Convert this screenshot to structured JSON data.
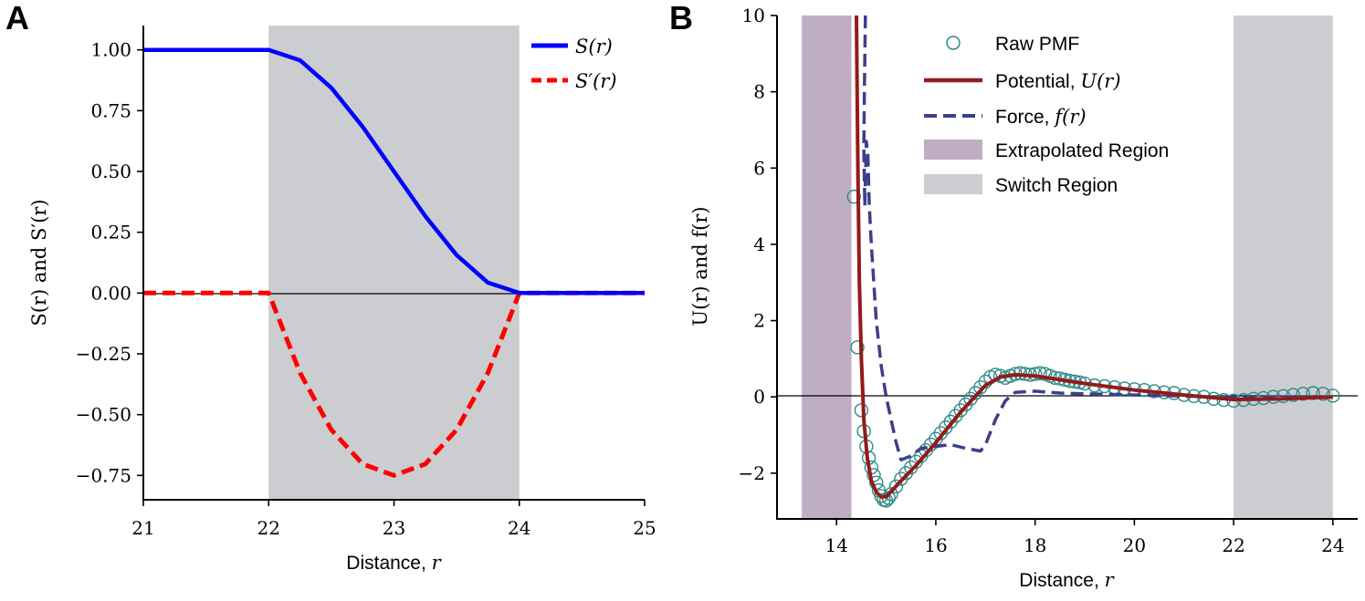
{
  "chart_data": [
    {
      "type": "line",
      "panel_label": "A",
      "title": "",
      "xlabel": "Distance, ",
      "xlabel_var": "r",
      "ylabel": "S(r) and S′(r)",
      "xlim": [
        21,
        25
      ],
      "ylim": [
        -0.85,
        1.1
      ],
      "xticks": [
        21,
        22,
        23,
        24,
        25
      ],
      "xtick_labels": [
        "21",
        "22",
        "23",
        "24",
        "25"
      ],
      "yticks": [
        1.0,
        0.75,
        0.5,
        0.25,
        0.0,
        -0.25,
        -0.5,
        -0.75
      ],
      "ytick_labels": [
        "1.00",
        "0.75",
        "0.50",
        "0.25",
        "0.00",
        "−0.25",
        "−0.50",
        "−0.75"
      ],
      "shaded_regions": [
        {
          "name": "Switch Region",
          "x0": 22,
          "x1": 24,
          "color": "#cbcdd0"
        }
      ],
      "hline": 0,
      "series": [
        {
          "name": "S(r)",
          "color": "#0000ff",
          "style": "solid",
          "x": [
            21,
            22,
            22.25,
            22.5,
            22.75,
            23,
            23.25,
            23.5,
            23.75,
            24,
            25
          ],
          "y": [
            1.0,
            1.0,
            0.9571,
            0.8438,
            0.6836,
            0.5,
            0.3164,
            0.1563,
            0.043,
            0.0,
            0.0
          ]
        },
        {
          "name": "S′(r)",
          "color": "#ff0000",
          "style": "dashed",
          "x": [
            21,
            22,
            22.25,
            22.5,
            22.75,
            23,
            23.25,
            23.5,
            23.75,
            24,
            25
          ],
          "y": [
            0.0,
            0.0,
            -0.3281,
            -0.5625,
            -0.7031,
            -0.75,
            -0.7031,
            -0.5625,
            -0.3281,
            0.0,
            0.0
          ]
        }
      ],
      "legend": {
        "position": "top-right",
        "entries": [
          "S(r)",
          "S′(r)"
        ]
      }
    },
    {
      "type": "line",
      "panel_label": "B",
      "title": "",
      "xlabel": "Distance, ",
      "xlabel_var": "r",
      "ylabel": "U(r) and f(r)",
      "xlim": [
        12.8,
        24.5
      ],
      "ylim": [
        -3.2,
        10
      ],
      "xticks": [
        14,
        16,
        18,
        20,
        22,
        24
      ],
      "xtick_labels": [
        "14",
        "16",
        "18",
        "20",
        "22",
        "24"
      ],
      "yticks": [
        10,
        8,
        6,
        4,
        2,
        0,
        -2
      ],
      "ytick_labels": [
        "10",
        "8",
        "6",
        "4",
        "2",
        "0",
        "−2"
      ],
      "shaded_regions": [
        {
          "name": "Extrapolated Region",
          "x0": 13.3,
          "x1": 14.3,
          "color": "#bfadc4"
        },
        {
          "name": "Switch Region",
          "x0": 22,
          "x1": 24,
          "color": "#cbcdd0"
        }
      ],
      "hline": 0,
      "series": [
        {
          "name": "Raw PMF",
          "color": "#2e8b87",
          "style": "markers",
          "x": [
            14.35,
            14.42,
            14.5,
            14.55,
            14.6,
            14.65,
            14.7,
            14.75,
            14.8,
            14.85,
            14.9,
            14.95,
            15.0,
            15.05,
            15.1,
            15.2,
            15.3,
            15.4,
            15.5,
            15.6,
            15.7,
            15.8,
            15.9,
            16.0,
            16.1,
            16.2,
            16.3,
            16.4,
            16.5,
            16.6,
            16.7,
            16.8,
            16.9,
            17.0,
            17.1,
            17.2,
            17.3,
            17.4,
            17.5,
            17.6,
            17.7,
            17.8,
            17.9,
            18.0,
            18.1,
            18.2,
            18.3,
            18.4,
            18.5,
            18.6,
            18.7,
            18.8,
            18.9,
            19.0,
            19.2,
            19.4,
            19.6,
            19.8,
            20.0,
            20.2,
            20.4,
            20.6,
            20.8,
            21.0,
            21.2,
            21.4,
            21.6,
            21.8,
            22.0,
            22.2,
            22.4,
            22.6,
            22.8,
            23.0,
            23.2,
            23.4,
            23.6,
            23.8,
            24.0
          ],
          "y": [
            5.25,
            1.3,
            -0.35,
            -0.9,
            -1.3,
            -1.6,
            -1.85,
            -2.05,
            -2.25,
            -2.45,
            -2.6,
            -2.7,
            -2.72,
            -2.65,
            -2.55,
            -2.35,
            -2.15,
            -2.0,
            -1.85,
            -1.7,
            -1.55,
            -1.4,
            -1.25,
            -1.1,
            -0.95,
            -0.8,
            -0.65,
            -0.5,
            -0.35,
            -0.2,
            -0.05,
            0.1,
            0.25,
            0.4,
            0.52,
            0.58,
            0.55,
            0.5,
            0.55,
            0.6,
            0.62,
            0.6,
            0.58,
            0.6,
            0.62,
            0.6,
            0.55,
            0.5,
            0.48,
            0.45,
            0.42,
            0.4,
            0.38,
            0.35,
            0.3,
            0.28,
            0.25,
            0.22,
            0.2,
            0.18,
            0.15,
            0.12,
            0.1,
            0.05,
            0.02,
            0.0,
            -0.05,
            -0.08,
            -0.1,
            -0.08,
            -0.05,
            -0.03,
            0.0,
            0.02,
            0.05,
            0.08,
            0.1,
            0.08,
            0.03
          ]
        },
        {
          "name": "Potential, U(r)",
          "color": "#951a1a",
          "style": "solid",
          "x": [
            14.4,
            14.43,
            14.46,
            14.5,
            14.55,
            14.62,
            14.7,
            14.8,
            14.9,
            15.0,
            15.3,
            15.6,
            16.0,
            16.5,
            17.0,
            17.3,
            17.6,
            18.0,
            18.5,
            19.0,
            20.0,
            21.0,
            22.0,
            23.0,
            24.0
          ],
          "y": [
            10.0,
            6.0,
            3.0,
            1.0,
            -0.6,
            -1.6,
            -2.2,
            -2.5,
            -2.62,
            -2.62,
            -2.2,
            -1.8,
            -1.2,
            -0.4,
            0.3,
            0.52,
            0.58,
            0.55,
            0.45,
            0.35,
            0.18,
            0.05,
            -0.07,
            -0.05,
            0.0
          ]
        },
        {
          "name": "Force, f(r)",
          "color": "#3c3f8c",
          "style": "dashed",
          "x": [
            14.58,
            14.56,
            14.55,
            14.57,
            14.6,
            14.63,
            14.66,
            14.7,
            14.75,
            14.8,
            14.9,
            15.0,
            15.1,
            15.2,
            15.3,
            15.5,
            15.7,
            16.0,
            16.3,
            16.6,
            16.9,
            17.0,
            17.2,
            17.4,
            17.6,
            18.0,
            18.5,
            19.0,
            20.0,
            21.0,
            22.0,
            23.0,
            24.0
          ],
          "y": [
            10.0,
            8.0,
            6.5,
            5.0,
            6.7,
            6.4,
            5.0,
            4.0,
            3.0,
            2.0,
            0.8,
            0.0,
            -0.6,
            -1.2,
            -1.65,
            -1.55,
            -1.35,
            -1.3,
            -1.25,
            -1.35,
            -1.42,
            -1.25,
            -0.6,
            -0.1,
            0.12,
            0.15,
            0.1,
            0.08,
            0.05,
            0.02,
            -0.02,
            0.0,
            0.0
          ]
        }
      ],
      "legend": {
        "position": "top-center",
        "entries": [
          "Raw PMF",
          "Potential, U(r)",
          "Force, f(r)",
          "Extrapolated Region",
          "Switch Region"
        ]
      }
    }
  ],
  "legend_a": {
    "s_label": "S(r)",
    "sp_label": "S′(r)"
  },
  "legend_b": {
    "raw": "Raw PMF",
    "potential": "Potential, ",
    "potential_var": "U(r)",
    "force": "Force, ",
    "force_var": "f(r)",
    "extrap": "Extrapolated Region",
    "switch": "Switch Region"
  },
  "colors": {
    "blue": "#0000ff",
    "red": "#ff0000",
    "darkred": "#951a1a",
    "navy": "#3c3f8c",
    "teal": "#2e8b87",
    "gray": "#cbcdd0",
    "mauve": "#bfadc4"
  }
}
